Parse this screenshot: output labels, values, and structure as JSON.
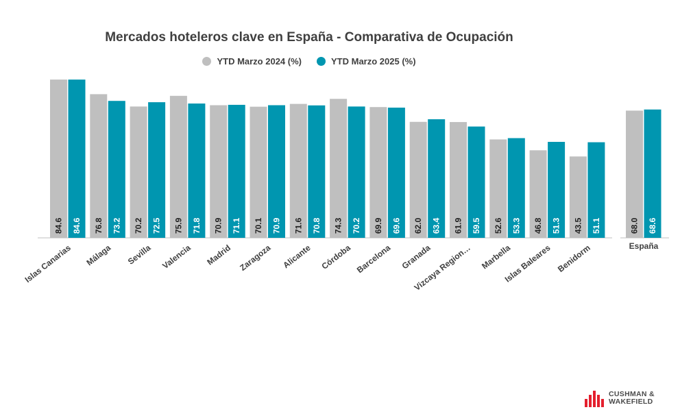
{
  "chart_data": {
    "type": "bar",
    "title": "Mercados hoteleros clave en España - Comparativa de Ocupación",
    "categories": [
      "Islas Canarias",
      "Málaga",
      "Sevilla",
      "Valencia",
      "Madrid",
      "Zaragoza",
      "Alicante",
      "Córdoba",
      "Barcelona",
      "Granada",
      "Vizcaya Region…",
      "Marbella",
      "Islas Baleares",
      "Benidorm"
    ],
    "series": [
      {
        "name": "YTD Marzo 2024 (%)",
        "color": "#bfbfbf",
        "values": [
          84.6,
          76.8,
          70.2,
          75.9,
          70.9,
          70.1,
          71.6,
          74.3,
          69.9,
          62.0,
          61.9,
          52.6,
          46.8,
          43.5
        ],
        "labels": [
          "84.6",
          "76.8",
          "70.2",
          "75.9",
          "70.9",
          "70.1",
          "71.6",
          "74.3",
          "69.9",
          "62.0",
          "61.9",
          "52.6",
          "46.8",
          "43.5"
        ]
      },
      {
        "name": "YTD Marzo 2025 (%)",
        "color": "#0096b0",
        "values": [
          84.6,
          73.2,
          72.5,
          71.8,
          71.1,
          70.9,
          70.8,
          70.2,
          69.6,
          63.4,
          59.5,
          53.3,
          51.3,
          51.1
        ],
        "labels": [
          "84.6",
          "73.2",
          "72.5",
          "71.8",
          "71.1",
          "70.9",
          "70.8",
          "70.2",
          "69.6",
          "63.4",
          "59.5",
          "53.3",
          "51.3",
          "51.1"
        ]
      }
    ],
    "summary": {
      "category": "España",
      "values": [
        68.0,
        68.6
      ],
      "labels": [
        "68.0",
        "68.6"
      ]
    },
    "ylim": [
      0,
      85
    ],
    "grid": false,
    "legend_position": "top-center"
  },
  "logo": {
    "line1": "CUSHMAN &",
    "line2": "WAKEFIELD"
  }
}
